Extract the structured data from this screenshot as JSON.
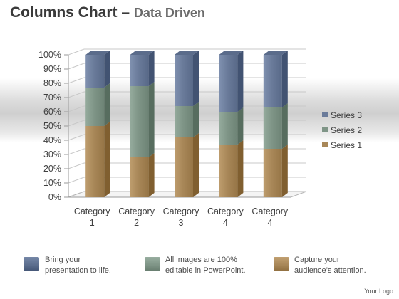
{
  "header": {
    "title_main": "Columns Chart",
    "title_dash": " – ",
    "title_sub": "Data Driven"
  },
  "chart_data": {
    "type": "bar",
    "stacked": "percent",
    "categories": [
      "Category 1",
      "Category 2",
      "Category 3",
      "Category 4",
      "Category 4"
    ],
    "series": [
      {
        "name": "Series 1",
        "values": [
          50,
          28,
          42,
          37,
          34
        ],
        "color": "#a88758"
      },
      {
        "name": "Series 2",
        "values": [
          27,
          50,
          22,
          23,
          29
        ],
        "color": "#7f9587"
      },
      {
        "name": "Series 3",
        "values": [
          23,
          22,
          36,
          40,
          37
        ],
        "color": "#6a7b9a"
      }
    ],
    "y_ticks": [
      "0%",
      "10%",
      "20%",
      "30%",
      "40%",
      "50%",
      "60%",
      "70%",
      "80%",
      "90%",
      "100%"
    ],
    "ylim": [
      0,
      100
    ],
    "grid": true,
    "legend_position": "right",
    "legend_order": [
      "Series 3",
      "Series 2",
      "Series 1"
    ]
  },
  "footer": {
    "captions": [
      {
        "line1": "Bring your",
        "line2": "presentation to life.",
        "color": "#5c6e8e"
      },
      {
        "line1": "All images are 100%",
        "line2": "editable in PowerPoint.",
        "color": "#7f9587"
      },
      {
        "line1": "Capture your",
        "line2": "audience’s attention.",
        "color": "#a88758"
      }
    ],
    "logo": "Your Logo"
  }
}
